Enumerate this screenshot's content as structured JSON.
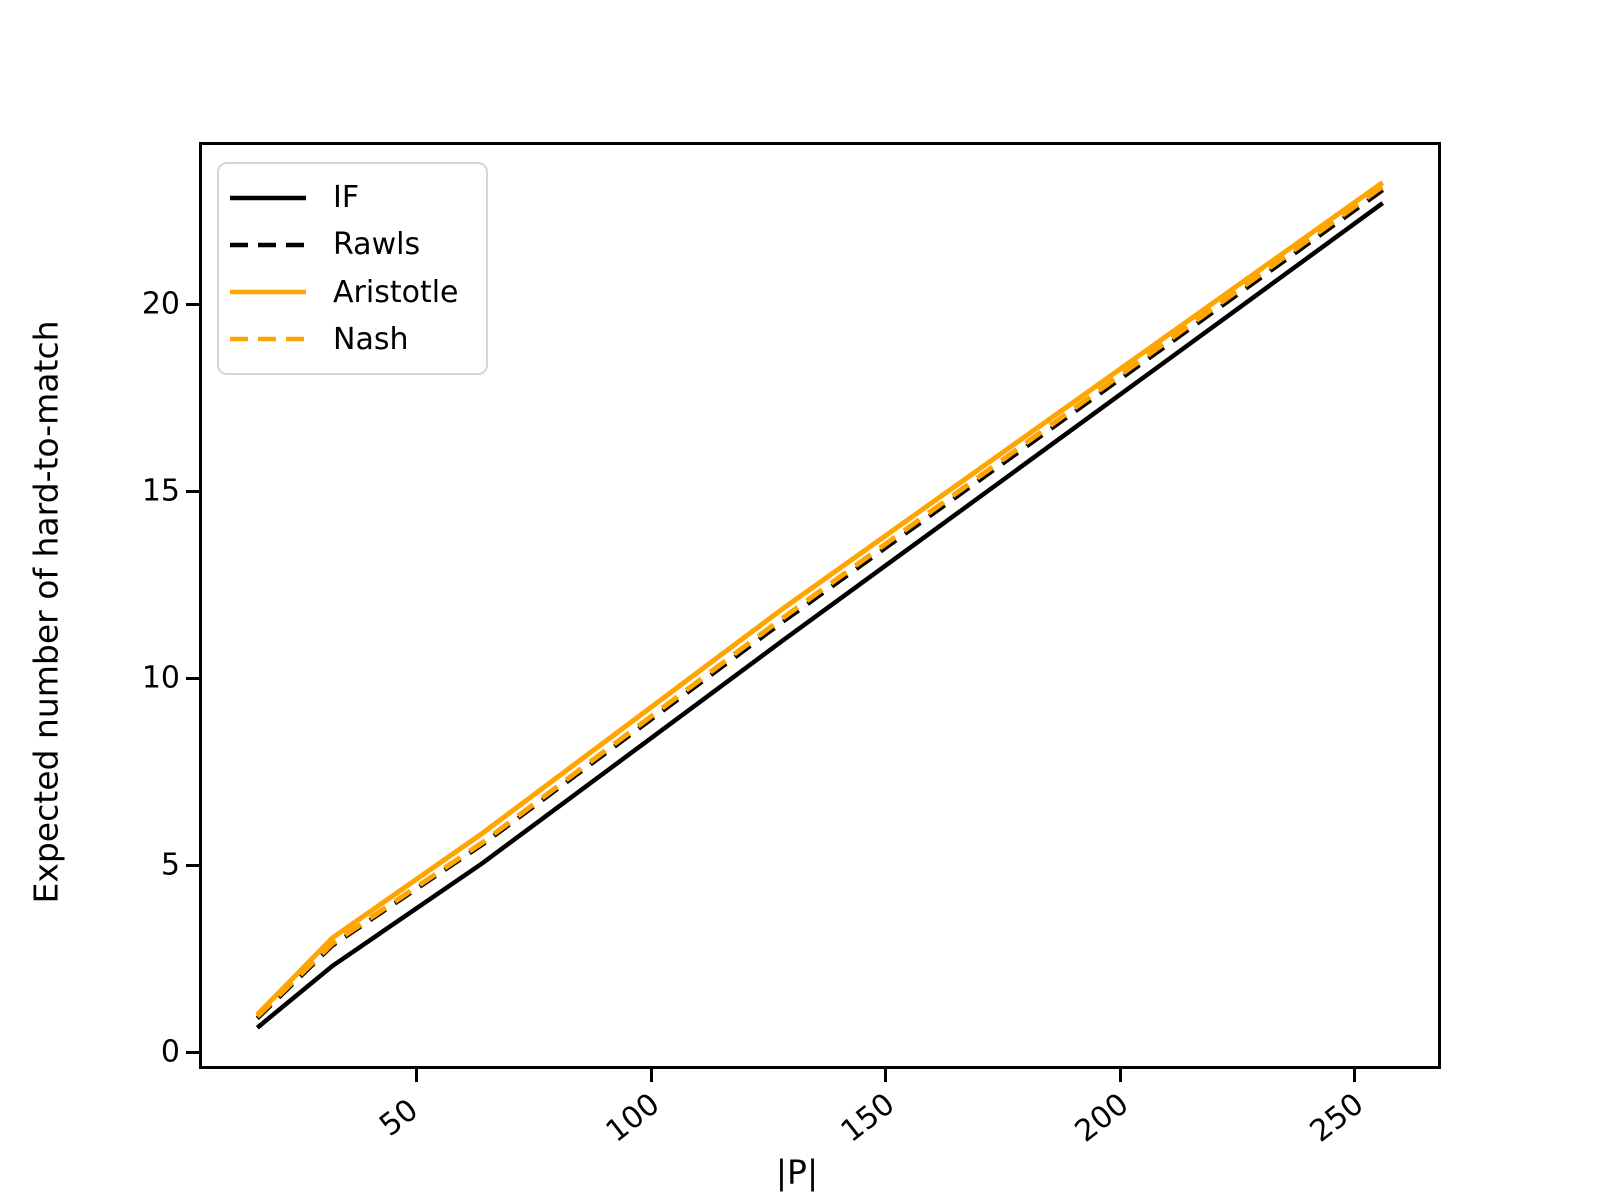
{
  "figure": {
    "background": "#ffffff",
    "spine_color": "#000000",
    "legend_border_color": "#d5d5d5",
    "orange": "#FFA500",
    "black": "#000000"
  },
  "chart_data": {
    "type": "line",
    "title": "",
    "xlabel": "|P|",
    "ylabel": "Expected number of hard-to-match",
    "x": [
      16,
      32,
      64,
      128,
      256
    ],
    "series": [
      {
        "name": "IF",
        "color": "#000000",
        "dash": "solid",
        "width": 4.5,
        "values": [
          0.65,
          2.3,
          5.05,
          11.0,
          22.7
        ]
      },
      {
        "name": "Rawls",
        "color": "#000000",
        "dash": "dashed",
        "width": 4.5,
        "values": [
          0.9,
          2.85,
          5.55,
          11.5,
          23.05
        ]
      },
      {
        "name": "Aristotle",
        "color": "#FFA500",
        "dash": "solid",
        "width": 5,
        "values": [
          1.0,
          3.05,
          5.85,
          11.85,
          23.25
        ]
      },
      {
        "name": "Nash",
        "color": "#FFA500",
        "dash": "dashed",
        "width": 5,
        "values": [
          0.95,
          2.9,
          5.6,
          11.6,
          23.15
        ]
      }
    ],
    "xticks": [
      50,
      100,
      150,
      200,
      250
    ],
    "yticks": [
      0,
      5,
      10,
      15,
      20
    ],
    "xlim": [
      4,
      268
    ],
    "ylim": [
      -0.4,
      24.28
    ],
    "grid": false,
    "legend_position": "upper-left",
    "x_tick_rotation_deg": -38
  }
}
